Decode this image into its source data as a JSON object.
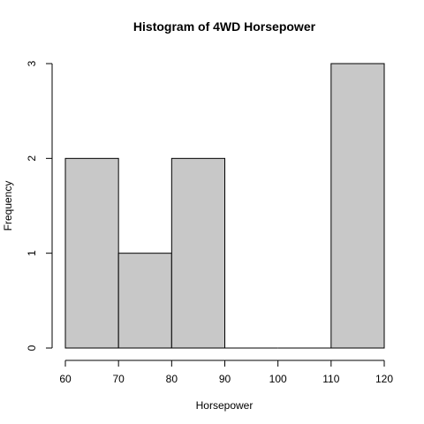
{
  "chart_data": {
    "type": "bar",
    "title": "Histogram of 4WD Horsepower",
    "xlabel": "Horsepower",
    "ylabel": "Frequency",
    "bins": [
      {
        "start": 60,
        "end": 70,
        "count": 2
      },
      {
        "start": 70,
        "end": 80,
        "count": 1
      },
      {
        "start": 80,
        "end": 90,
        "count": 2
      },
      {
        "start": 90,
        "end": 100,
        "count": 0
      },
      {
        "start": 100,
        "end": 110,
        "count": 0
      },
      {
        "start": 110,
        "end": 120,
        "count": 3
      }
    ],
    "xlim": [
      60,
      120
    ],
    "ylim": [
      0,
      3
    ],
    "x_ticks": [
      60,
      70,
      80,
      90,
      100,
      110,
      120
    ],
    "y_ticks": [
      0,
      1,
      2,
      3
    ],
    "bar_color": "#c8c8c8",
    "edge_color": "#000000",
    "grid": false,
    "legend": "none"
  }
}
